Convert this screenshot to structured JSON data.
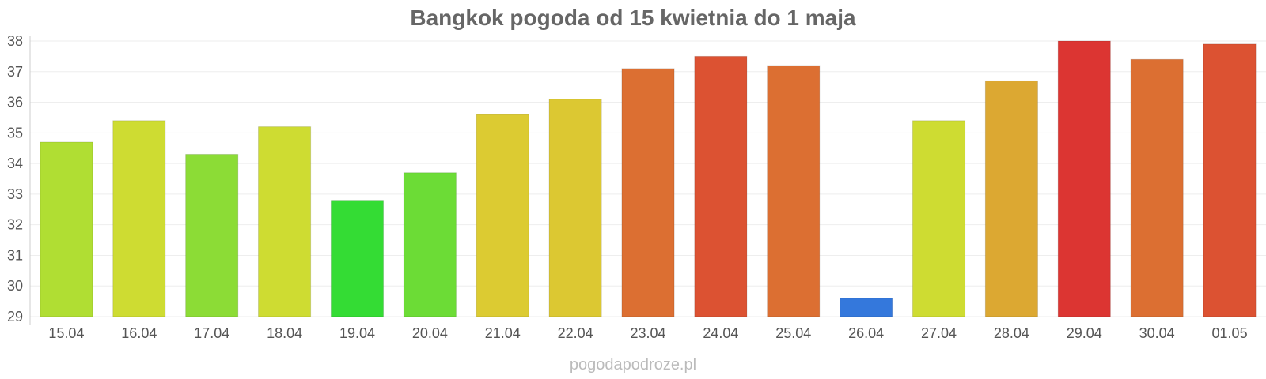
{
  "chart_data": {
    "type": "bar",
    "title": "Bangkok pogoda od 15 kwietnia do 1 maja",
    "xlabel": "",
    "ylabel": "",
    "ylim": [
      29,
      38
    ],
    "yticks": [
      29,
      30,
      31,
      32,
      33,
      34,
      35,
      36,
      37,
      38
    ],
    "grid": true,
    "legend": "none",
    "categories": [
      "15.04",
      "16.04",
      "17.04",
      "18.04",
      "19.04",
      "20.04",
      "21.04",
      "22.04",
      "23.04",
      "24.04",
      "25.04",
      "26.04",
      "27.04",
      "28.04",
      "29.04",
      "30.04",
      "01.05"
    ],
    "values": [
      34.7,
      35.4,
      34.3,
      35.2,
      32.8,
      33.7,
      35.6,
      36.1,
      37.1,
      37.5,
      37.2,
      29.6,
      35.4,
      36.7,
      38.0,
      37.4,
      37.9
    ],
    "colors": [
      "#b0de33",
      "#cedc32",
      "#8cdc36",
      "#cedc32",
      "#34dc34",
      "#6cdc36",
      "#dccb32",
      "#dcc832",
      "#dc6f32",
      "#dc5232",
      "#dc6f32",
      "#3478dc",
      "#cedc32",
      "#dca832",
      "#dc3532",
      "#dc6f32",
      "#dc5232"
    ]
  },
  "footer": {
    "watermark": "pogodapodroze.pl"
  }
}
